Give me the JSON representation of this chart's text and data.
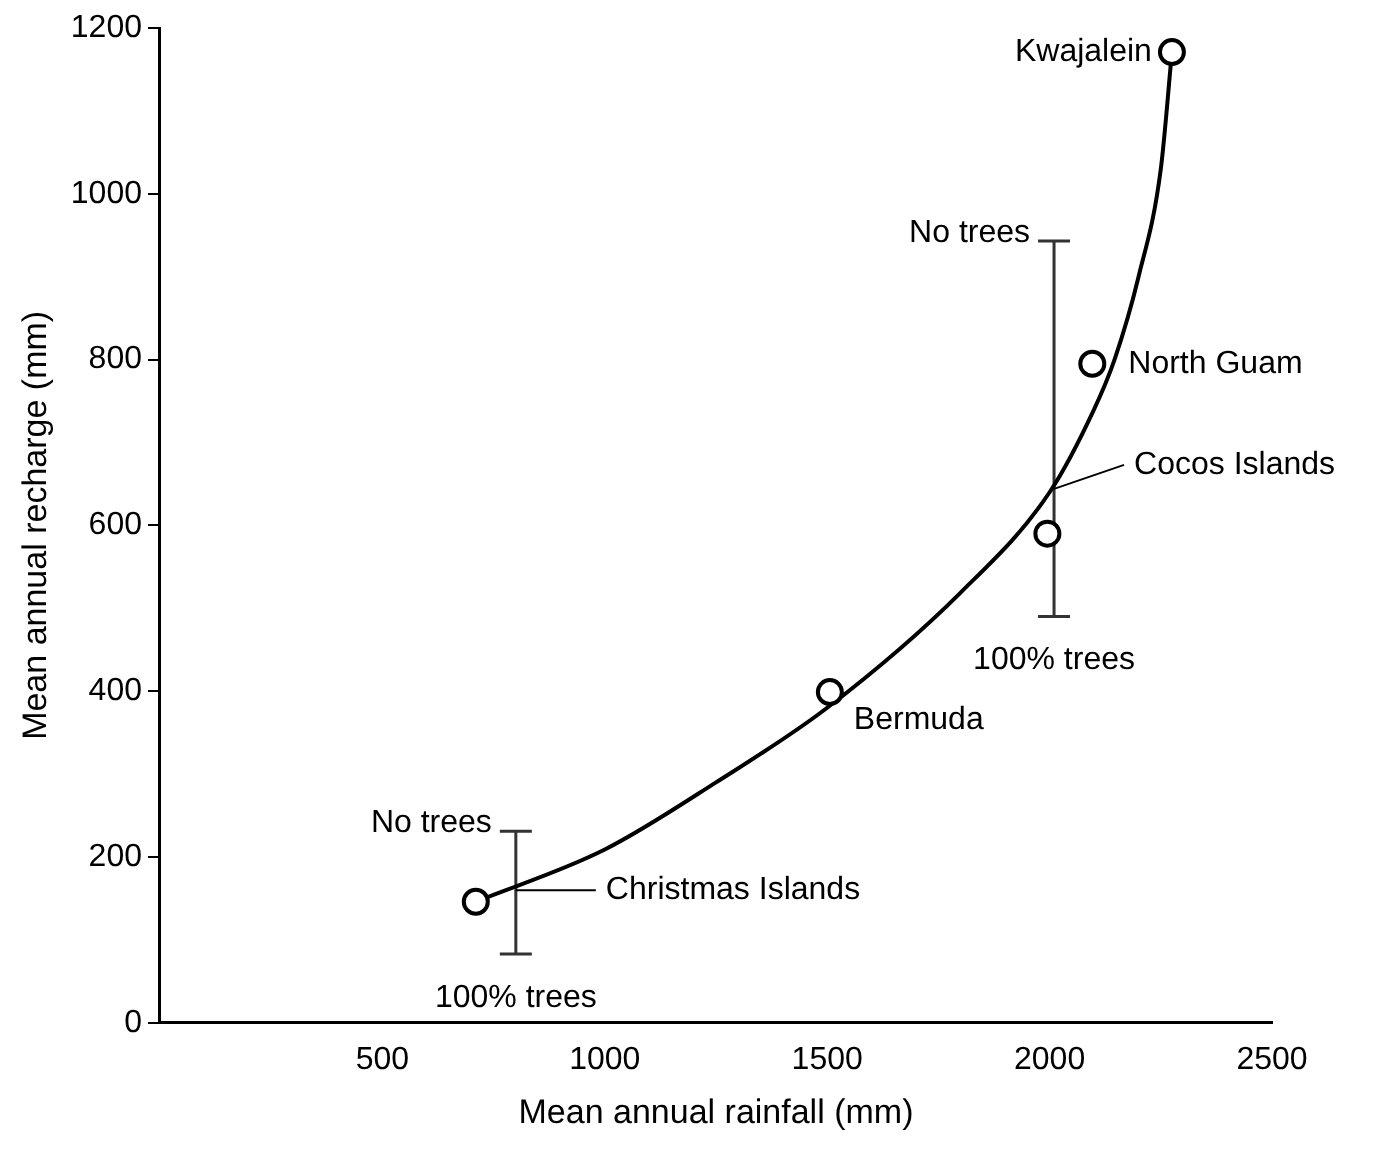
{
  "chart_data": {
    "type": "scatter",
    "xlabel": "Mean annual rainfall (mm)",
    "ylabel": "Mean annual recharge (mm)",
    "xlim": [
      0,
      2500
    ],
    "xticks": [
      500,
      1000,
      1500,
      2000,
      2500
    ],
    "ylim": [
      0,
      1200
    ],
    "yticks": [
      0,
      200,
      400,
      600,
      800,
      1000,
      1200
    ],
    "grid": false,
    "legend": false,
    "marker": "circle",
    "series": [
      {
        "color": "#000000",
        "x": [
          710,
          1506,
          1995,
          2096,
          2275
        ],
        "values": [
          146,
          399,
          590,
          795,
          1171
        ]
      },
      {
        "type": "line",
        "color": "#000000",
        "marker": "none",
        "line_style": "solid",
        "x": [
          710,
          1000,
          1250,
          1500,
          1800,
          2000,
          2100,
          2146,
          2200,
          2250,
          2275
        ],
        "values": [
          146,
          209,
          290,
          380,
          519,
          640,
          740,
          800,
          900,
          1030,
          1171
        ]
      },
      {
        "type": "line",
        "color": "#333333",
        "marker": "none",
        "x": [
          800,
          800
        ],
        "values": [
          83,
          231
        ]
      },
      {
        "type": "line",
        "color": "#333333",
        "marker": "none",
        "x": [
          2010,
          2010
        ],
        "values": [
          490,
          943
        ]
      }
    ],
    "annotations": [
      {
        "text": "Christmas Islands",
        "x": 800,
        "y": 160
      },
      {
        "text": "Bermuda",
        "x": 1506,
        "y": 399
      },
      {
        "text": "Cocos Islands",
        "x": 2010,
        "y": 644
      },
      {
        "text": "North Guam",
        "x": 2096,
        "y": 795
      },
      {
        "text": "Kwajalein",
        "x": 2275,
        "y": 1171
      },
      {
        "text": "No trees",
        "x": 800,
        "y": 231
      },
      {
        "text": "100% trees",
        "x": 800,
        "y": 83
      },
      {
        "text": "No trees",
        "x": 2010,
        "y": 943
      },
      {
        "text": "100% trees",
        "x": 2010,
        "y": 490
      }
    ]
  }
}
